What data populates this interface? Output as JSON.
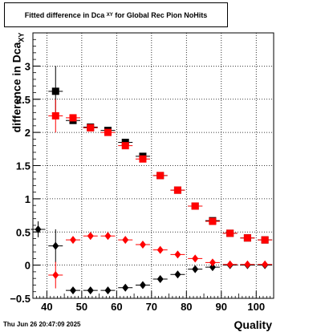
{
  "title": {
    "main": "Fitted difference in Dca",
    "sub": "XY",
    "suffix": "for Global Rec Pion NoHits"
  },
  "timestamp": "Thu Jun 26 20:47:09 2025",
  "chart_data": {
    "type": "scatter",
    "xlabel": "Quality",
    "ylabel": "difference in Dca",
    "ylabel_sub": "XY",
    "xlim": [
      36,
      105
    ],
    "ylim": [
      -0.5,
      3.5
    ],
    "xticks": [
      40,
      50,
      60,
      70,
      80,
      90,
      100
    ],
    "yticks": [
      -0.5,
      0,
      0.5,
      1,
      1.5,
      2,
      2.5,
      3
    ],
    "ytick_labels": [
      "−0.5",
      "0",
      "0.5",
      "1",
      "1.5",
      "2",
      "2.5",
      "3"
    ],
    "grid": true,
    "series": [
      {
        "marker": "square",
        "color": "#000000",
        "x": [
          42.5,
          47.5,
          52.5,
          57.5,
          62.5,
          67.5,
          72.5,
          77.5,
          82.5,
          87.5,
          92.5,
          97.5,
          102.5
        ],
        "y": [
          2.62,
          2.18,
          2.08,
          2.03,
          1.85,
          1.64,
          1.35,
          1.13,
          0.89,
          0.67,
          0.48,
          0.41,
          0.38
        ],
        "yerr": [
          0.38,
          0.04,
          0.02,
          0.02,
          0.02,
          0.02,
          0.02,
          0.02,
          0.02,
          0.02,
          0.02,
          0.02,
          0.02
        ]
      },
      {
        "marker": "square",
        "color": "#ff0000",
        "x": [
          42.5,
          47.5,
          52.5,
          57.5,
          62.5,
          67.5,
          72.5,
          77.5,
          82.5,
          87.5,
          92.5,
          97.5,
          102.5
        ],
        "y": [
          2.25,
          2.22,
          2.07,
          2.0,
          1.8,
          1.6,
          1.35,
          1.13,
          0.89,
          0.66,
          0.48,
          0.41,
          0.38
        ],
        "yerr": [
          0.25,
          0.05,
          0.02,
          0.02,
          0.02,
          0.02,
          0.02,
          0.02,
          0.02,
          0.02,
          0.02,
          0.02,
          0.02
        ]
      },
      {
        "marker": "diamond",
        "color": "#000000",
        "x": [
          37.5,
          42.5,
          47.5,
          52.5,
          57.5,
          62.5,
          67.5,
          72.5,
          77.5,
          82.5,
          87.5,
          92.5,
          97.5,
          102.5
        ],
        "y": [
          0.54,
          0.29,
          -0.38,
          -0.38,
          -0.38,
          -0.34,
          -0.3,
          -0.21,
          -0.14,
          -0.06,
          -0.03,
          0.0,
          0.0,
          0.0
        ],
        "yerr": [
          0.12,
          0.25,
          0.02,
          0.02,
          0.02,
          0.02,
          0.02,
          0.02,
          0.02,
          0.02,
          0.02,
          0.02,
          0.02,
          0.02
        ]
      },
      {
        "marker": "diamond",
        "color": "#ff0000",
        "x": [
          42.5,
          47.5,
          52.5,
          57.5,
          62.5,
          67.5,
          72.5,
          77.5,
          82.5,
          87.5,
          92.5,
          97.5,
          102.5
        ],
        "y": [
          -0.15,
          0.38,
          0.44,
          0.44,
          0.38,
          0.31,
          0.23,
          0.16,
          0.1,
          0.04,
          0.01,
          0.01,
          0.01
        ],
        "yerr": [
          0.2,
          0.03,
          0.02,
          0.02,
          0.02,
          0.02,
          0.02,
          0.02,
          0.02,
          0.02,
          0.02,
          0.02,
          0.02
        ]
      }
    ]
  }
}
